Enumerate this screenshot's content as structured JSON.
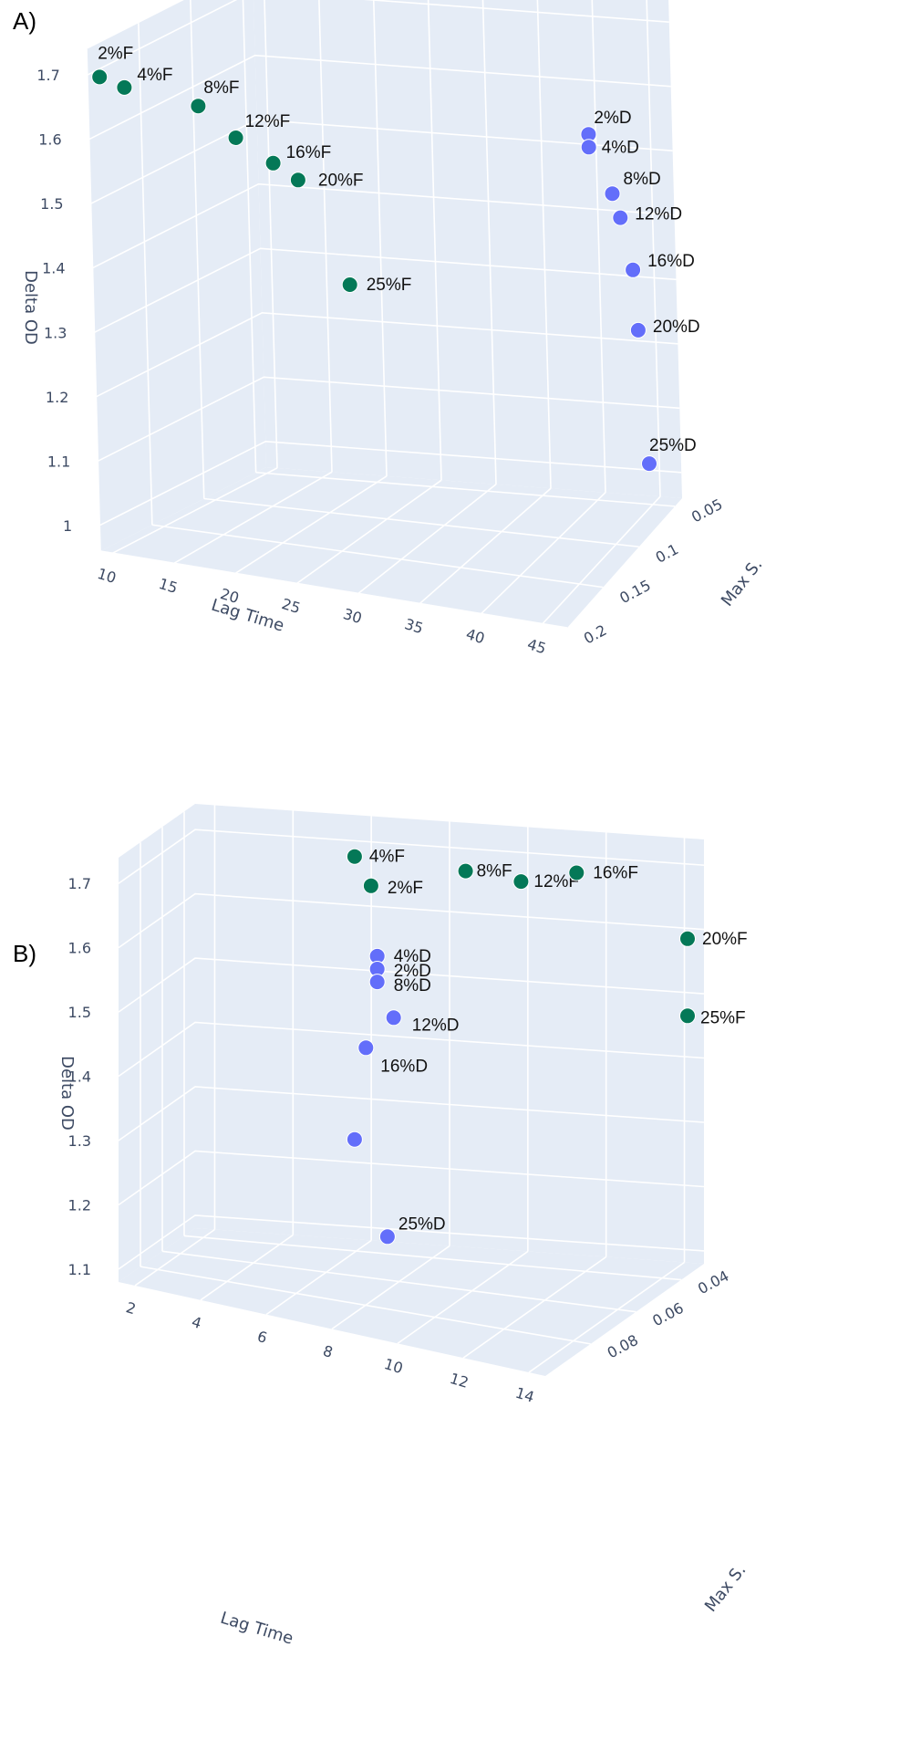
{
  "panels": {
    "a": {
      "label": "A)"
    },
    "b": {
      "label": "B)"
    }
  },
  "chart_data": [
    {
      "type": "scatter",
      "subtype": "3d-scatter",
      "panel": "A)",
      "xlabel": "Lag Time",
      "ylabel": "Max S.",
      "zlabel": "Delta OD",
      "x_ticks": [
        "10",
        "15",
        "20",
        "25",
        "30",
        "35",
        "40",
        "45"
      ],
      "y_ticks": [
        "0.05",
        "0.1",
        "0.15",
        "0.2"
      ],
      "z_ticks": [
        "1",
        "1.1",
        "1.2",
        "1.3",
        "1.4",
        "1.5",
        "1.6",
        "1.7"
      ],
      "colors": {
        "F": "#047857",
        "D": "#636efa",
        "pane": "#e5ecf6",
        "grid": "#ffffff",
        "text": "#3d4a63"
      },
      "series": [
        {
          "group": "F",
          "points": [
            {
              "label": "2%F",
              "lag_time": 10,
              "max_s": 0.2,
              "delta_od": 1.7
            },
            {
              "label": "4%F",
              "lag_time": 12,
              "max_s": 0.2,
              "delta_od": 1.69
            },
            {
              "label": "8%F",
              "lag_time": 18,
              "max_s": 0.2,
              "delta_od": 1.68
            },
            {
              "label": "12%F",
              "lag_time": 21,
              "max_s": 0.2,
              "delta_od": 1.64
            },
            {
              "label": "16%F",
              "lag_time": 24,
              "max_s": 0.2,
              "delta_od": 1.61
            },
            {
              "label": "20%F",
              "lag_time": 26,
              "max_s": 0.2,
              "delta_od": 1.59
            },
            {
              "label": "25%F",
              "lag_time": 30,
              "max_s": 0.2,
              "delta_od": 1.44
            }
          ]
        },
        {
          "group": "D",
          "points": [
            {
              "label": "2%D",
              "lag_time": 45,
              "max_s": 0.12,
              "delta_od": 1.62
            },
            {
              "label": "4%D",
              "lag_time": 45,
              "max_s": 0.12,
              "delta_od": 1.6
            },
            {
              "label": "8%D",
              "lag_time": 45,
              "max_s": 0.09,
              "delta_od": 1.49
            },
            {
              "label": "12%D",
              "lag_time": 45,
              "max_s": 0.08,
              "delta_od": 1.44
            },
            {
              "label": "16%D",
              "lag_time": 45,
              "max_s": 0.065,
              "delta_od": 1.34
            },
            {
              "label": "20%D",
              "lag_time": 45,
              "max_s": 0.06,
              "delta_od": 1.24
            },
            {
              "label": "25%D",
              "lag_time": 45,
              "max_s": 0.05,
              "delta_od": 1.02
            }
          ]
        }
      ]
    },
    {
      "type": "scatter",
      "subtype": "3d-scatter",
      "panel": "B)",
      "xlabel": "Lag Time",
      "ylabel": "Max S.",
      "zlabel": "Delta OD",
      "x_ticks": [
        "2",
        "4",
        "6",
        "8",
        "10",
        "12",
        "14"
      ],
      "y_ticks": [
        "0.04",
        "0.06",
        "0.08"
      ],
      "z_ticks": [
        "1.1",
        "1.2",
        "1.3",
        "1.4",
        "1.5",
        "1.6",
        "1.7"
      ],
      "colors": {
        "F": "#047857",
        "D": "#636efa",
        "pane": "#e5ecf6",
        "grid": "#ffffff",
        "text": "#3d4a63"
      },
      "series": [
        {
          "group": "F",
          "points": [
            {
              "label": "4%F",
              "lag_time": 8,
              "max_s": 0.09,
              "delta_od": 1.79
            },
            {
              "label": "2%F",
              "lag_time": 8.5,
              "max_s": 0.09,
              "delta_od": 1.75
            },
            {
              "label": "8%F",
              "lag_time": 10,
              "max_s": 0.07,
              "delta_od": 1.74
            },
            {
              "label": "12%F",
              "lag_time": 11,
              "max_s": 0.06,
              "delta_od": 1.71
            },
            {
              "label": "16%F",
              "lag_time": 12,
              "max_s": 0.05,
              "delta_od": 1.71
            },
            {
              "label": "20%F",
              "lag_time": 14,
              "max_s": 0.03,
              "delta_od": 1.58
            },
            {
              "label": "25%F",
              "lag_time": 14,
              "max_s": 0.03,
              "delta_od": 1.46
            }
          ]
        },
        {
          "group": "D",
          "points": [
            {
              "label": "4%D",
              "lag_time": 8,
              "max_s": 0.08,
              "delta_od": 1.61
            },
            {
              "label": "2%D",
              "lag_time": 8,
              "max_s": 0.08,
              "delta_od": 1.59
            },
            {
              "label": "8%D",
              "lag_time": 8,
              "max_s": 0.08,
              "delta_od": 1.57
            },
            {
              "label": "12%D",
              "lag_time": 8.5,
              "max_s": 0.08,
              "delta_od": 1.52
            },
            {
              "label": "16%D",
              "lag_time": 8,
              "max_s": 0.085,
              "delta_od": 1.48
            },
            {
              "label": "",
              "lag_time": 8,
              "max_s": 0.09,
              "delta_od": 1.35
            },
            {
              "label": "25%D",
              "lag_time": 9,
              "max_s": 0.09,
              "delta_od": 1.21
            }
          ]
        }
      ]
    }
  ]
}
